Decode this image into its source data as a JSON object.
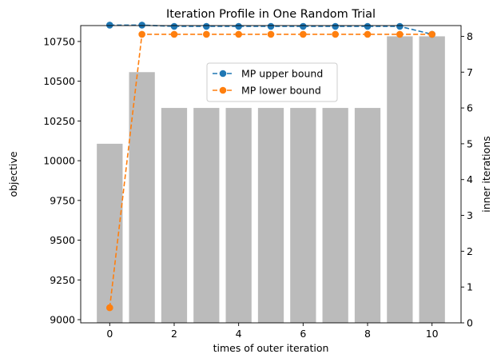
{
  "chart_data": {
    "type": "bar+line",
    "title": "Iteration Profile in One Random Trial",
    "xlabel": "times of outer iteration",
    "ylabel_left": "objective",
    "ylabel_right": "inner iterations",
    "x": [
      0,
      1,
      2,
      3,
      4,
      5,
      6,
      7,
      8,
      9,
      10
    ],
    "xlim": [
      -0.9,
      10.9
    ],
    "xticks": [
      0,
      2,
      4,
      6,
      8,
      10
    ],
    "ylim_left": [
      8980,
      10850
    ],
    "yticks_left": [
      9000,
      9250,
      9500,
      9750,
      10000,
      10250,
      10500,
      10750
    ],
    "ylim_right": [
      0,
      8.3
    ],
    "yticks_right": [
      0,
      1,
      2,
      3,
      4,
      5,
      6,
      7,
      8
    ],
    "bars": {
      "axis": "right",
      "color": "#bbbbbb",
      "values": [
        5,
        7,
        6,
        6,
        6,
        6,
        6,
        6,
        6,
        8,
        8
      ]
    },
    "series": [
      {
        "name": "MP upper bound",
        "axis": "left",
        "color": "#1f77b4",
        "values": [
          10853,
          10853,
          10845,
          10845,
          10845,
          10845,
          10845,
          10845,
          10845,
          10845,
          10795
        ]
      },
      {
        "name": "MP lower bound",
        "axis": "left",
        "color": "#ff7f0e",
        "values": [
          9075,
          10795,
          10795,
          10795,
          10795,
          10795,
          10795,
          10795,
          10795,
          10795,
          10795
        ]
      }
    ],
    "legend_position": "upper center",
    "grid": false
  }
}
